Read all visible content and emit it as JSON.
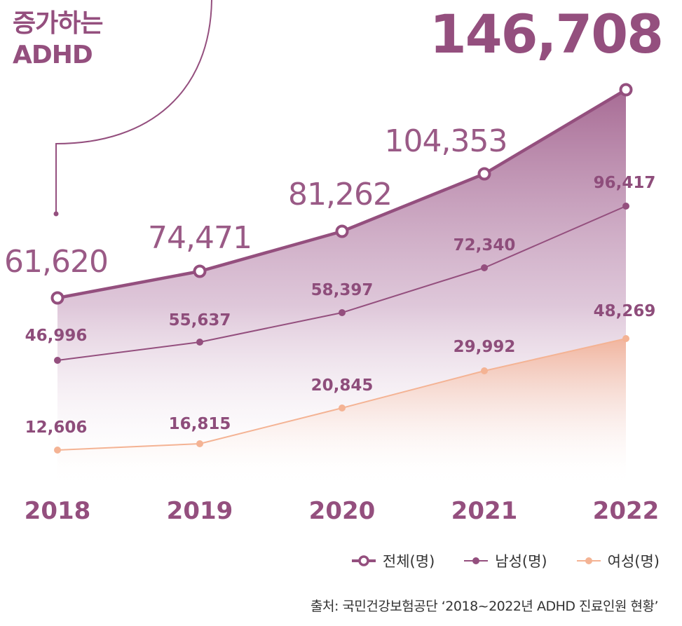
{
  "title": {
    "line1": "증가하는",
    "line2": "ADHD"
  },
  "colors": {
    "total": "#944f7e",
    "male": "#944f7e",
    "female": "#f4b394",
    "total_fill_top": "#b27ba4",
    "female_fill_top": "#f6bc9e"
  },
  "chart_data": {
    "type": "area",
    "x": [
      "2018",
      "2019",
      "2020",
      "2021",
      "2022"
    ],
    "series": [
      {
        "name": "전체(명)",
        "values": [
          61620,
          74471,
          81262,
          104353,
          146708
        ],
        "labels": [
          "61,620",
          "74,471",
          "81,262",
          "104,353",
          "146,708"
        ]
      },
      {
        "name": "남성(명)",
        "values": [
          46996,
          55637,
          58397,
          72340,
          96417
        ],
        "labels": [
          "46,996",
          "55,637",
          "58,397",
          "72,340",
          "96,417"
        ]
      },
      {
        "name": "여성(명)",
        "values": [
          12606,
          16815,
          20845,
          29992,
          48269
        ],
        "labels": [
          "12,606",
          "16,815",
          "20,845",
          "29,992",
          "48,269"
        ]
      }
    ],
    "legend_position": "bottom-right",
    "grid": false
  },
  "legend": {
    "total": "전체(명)",
    "male": "남성(명)",
    "female": "여성(명)"
  },
  "source": "출처: 국민건강보험공단 ‘2018~2022년 ADHD 진료인원 현황’"
}
